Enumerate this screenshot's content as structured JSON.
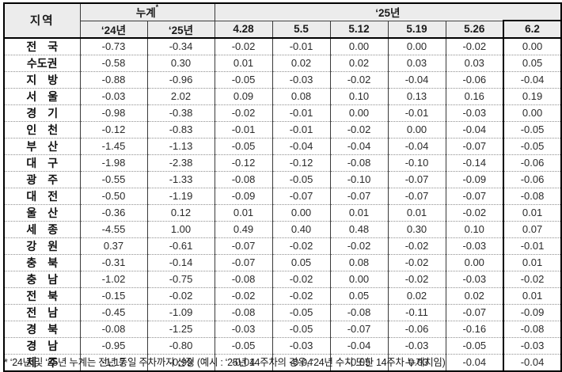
{
  "colors": {
    "header_bg": "#ececec",
    "outer_border": "#000000",
    "grid_line": "#3a3a3a",
    "dotted_line": "#8f8f8f",
    "text": "#1a1a1a"
  },
  "table": {
    "header": {
      "region": "지역",
      "cumulative": "누계",
      "cumulative_sup": "*",
      "cumulative_cols": [
        "‘24년",
        "‘25년"
      ],
      "year_group": "‘25년",
      "week_cols": [
        "4.28",
        "5.5",
        "5.12",
        "5.19",
        "5.26",
        "6.2"
      ]
    },
    "rows": [
      {
        "region": "전　국",
        "values": [
          "-0.73",
          "-0.34",
          "-0.02",
          "-0.01",
          "0.00",
          "0.00",
          "-0.02",
          "0.00"
        ]
      },
      {
        "region": "수도권",
        "values": [
          "-0.58",
          "0.30",
          "0.01",
          "0.02",
          "0.02",
          "0.03",
          "0.03",
          "0.05"
        ]
      },
      {
        "region": "지　방",
        "values": [
          "-0.88",
          "-0.96",
          "-0.05",
          "-0.03",
          "-0.02",
          "-0.04",
          "-0.06",
          "-0.04"
        ]
      },
      {
        "region": "서　울",
        "values": [
          "-0.03",
          "2.02",
          "0.09",
          "0.08",
          "0.10",
          "0.13",
          "0.16",
          "0.19"
        ]
      },
      {
        "region": "경　기",
        "values": [
          "-0.98",
          "-0.38",
          "-0.02",
          "-0.01",
          "0.00",
          "-0.01",
          "-0.03",
          "0.00"
        ]
      },
      {
        "region": "인　천",
        "values": [
          "-0.12",
          "-0.83",
          "-0.01",
          "-0.01",
          "-0.02",
          "0.00",
          "-0.04",
          "-0.05"
        ]
      },
      {
        "region": "부　산",
        "values": [
          "-1.45",
          "-1.13",
          "-0.05",
          "-0.04",
          "-0.04",
          "-0.04",
          "-0.07",
          "-0.05"
        ]
      },
      {
        "region": "대　구",
        "values": [
          "-1.98",
          "-2.38",
          "-0.12",
          "-0.12",
          "-0.08",
          "-0.10",
          "-0.14",
          "-0.06"
        ]
      },
      {
        "region": "광　주",
        "values": [
          "-0.55",
          "-1.33",
          "-0.08",
          "-0.05",
          "-0.10",
          "-0.07",
          "-0.09",
          "-0.06"
        ]
      },
      {
        "region": "대　전",
        "values": [
          "-0.50",
          "-1.19",
          "-0.09",
          "-0.07",
          "-0.07",
          "-0.07",
          "-0.07",
          "-0.08"
        ]
      },
      {
        "region": "울　산",
        "values": [
          "-0.36",
          "0.12",
          "0.01",
          "0.00",
          "0.01",
          "0.01",
          "-0.02",
          "0.01"
        ]
      },
      {
        "region": "세　종",
        "values": [
          "-4.55",
          "1.00",
          "0.49",
          "0.40",
          "0.48",
          "0.30",
          "0.10",
          "0.07"
        ]
      },
      {
        "region": "강　원",
        "values": [
          "0.37",
          "-0.61",
          "-0.07",
          "-0.02",
          "-0.02",
          "-0.02",
          "-0.03",
          "-0.01"
        ]
      },
      {
        "region": "충　북",
        "values": [
          "-0.31",
          "-0.14",
          "-0.07",
          "0.05",
          "0.08",
          "-0.02",
          "0.00",
          "0.01"
        ]
      },
      {
        "region": "충　남",
        "values": [
          "-1.02",
          "-0.75",
          "-0.08",
          "-0.02",
          "0.00",
          "-0.02",
          "-0.03",
          "-0.02"
        ]
      },
      {
        "region": "전　북",
        "values": [
          "-0.15",
          "-0.02",
          "-0.02",
          "-0.02",
          "0.05",
          "0.02",
          "0.02",
          "0.01"
        ]
      },
      {
        "region": "전　남",
        "values": [
          "-0.45",
          "-1.09",
          "-0.08",
          "-0.05",
          "-0.08",
          "-0.11",
          "-0.07",
          "-0.09"
        ]
      },
      {
        "region": "경　북",
        "values": [
          "-0.08",
          "-1.25",
          "-0.03",
          "-0.05",
          "-0.07",
          "-0.06",
          "-0.16",
          "-0.08"
        ]
      },
      {
        "region": "경　남",
        "values": [
          "-0.95",
          "-0.80",
          "-0.05",
          "-0.03",
          "-0.04",
          "-0.03",
          "-0.05",
          "-0.03"
        ]
      },
      {
        "region": "제　주",
        "values": [
          "-1.17",
          "-0.99",
          "-0.04",
          "-0.04",
          "-0.05",
          "-0.03",
          "-0.04",
          "-0.04"
        ]
      }
    ]
  },
  "footnote": "* ‘24년 및 ‘25년 누계는 전년 동일 주차까지 산정 (예시 : ‘25년 14주차의 경우, ‘24년 수치 또한 14주차 누계치임)"
}
